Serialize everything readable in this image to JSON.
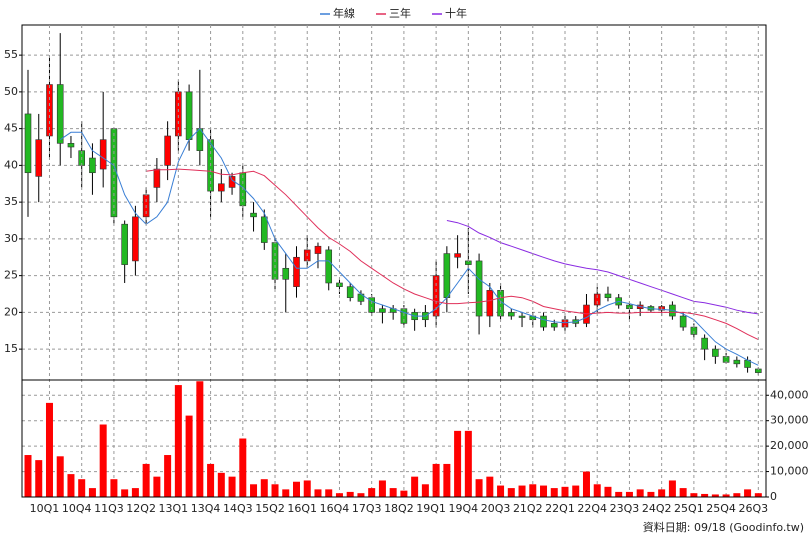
{
  "chart_data": [
    {
      "type": "candlestick",
      "legend": "top",
      "up_color": "#ff0000",
      "down_color": "#22b822",
      "ylim": [
        10.8,
        59.1
      ],
      "yticks": [
        15,
        20,
        25,
        30,
        35,
        40,
        45,
        50,
        55
      ],
      "grid": true,
      "open": [
        47,
        38.5,
        44,
        51,
        43,
        42,
        41,
        39.5,
        45,
        32,
        27,
        33,
        37,
        40,
        44,
        50,
        45,
        43.5,
        36.5,
        37,
        39,
        33.5,
        33,
        29.5,
        26,
        23.5,
        27,
        28,
        28.5,
        24,
        23.5,
        22.5,
        22,
        20.5,
        20.5,
        20.5,
        20,
        20,
        19.5,
        28,
        27.5,
        27,
        27,
        19.5,
        23,
        20,
        19.5,
        19.5,
        19.5,
        18.5,
        18,
        19,
        18.5,
        21,
        22.5,
        22,
        21,
        20.5,
        20.8,
        20.3,
        21,
        19.5,
        18,
        16.5,
        15,
        14,
        13.5,
        13.5,
        12.3
      ],
      "high": [
        53,
        47,
        55,
        58,
        44,
        46,
        43,
        50,
        45,
        32.5,
        34.5,
        37,
        41,
        46,
        51.5,
        51,
        53,
        45,
        39.5,
        39,
        40,
        35,
        34,
        30.5,
        28,
        29,
        30.5,
        29.5,
        29,
        24.5,
        24,
        23,
        22.5,
        21,
        21,
        21,
        20.5,
        21,
        27,
        29,
        30.5,
        31.5,
        28,
        24,
        24,
        20.5,
        20,
        20,
        20,
        19,
        19.5,
        19.5,
        22.5,
        23.5,
        23.5,
        22.5,
        21.5,
        21.5,
        21,
        21,
        21.5,
        20,
        18.5,
        17,
        15.5,
        14.5,
        14,
        14,
        12.5
      ],
      "low": [
        33,
        35,
        41,
        40,
        41,
        37,
        36,
        37,
        32,
        24,
        25,
        32,
        35,
        38,
        42,
        42,
        40,
        33,
        35,
        36,
        33,
        31,
        28.5,
        23,
        20,
        22,
        26,
        26,
        23,
        22.5,
        21.5,
        21,
        19.5,
        18.5,
        19,
        18,
        17.5,
        18,
        18,
        20,
        26,
        22.5,
        17,
        18,
        19,
        19,
        18,
        18,
        17.5,
        17.5,
        17.5,
        18,
        18,
        20,
        21.5,
        20.5,
        19,
        19.5,
        20,
        19.5,
        19,
        17.5,
        16.5,
        13.5,
        13,
        13,
        12.5,
        11.8,
        11.5
      ],
      "close": [
        39,
        43.5,
        51,
        43,
        42.5,
        40,
        39,
        43.5,
        33,
        26.5,
        33,
        36,
        39.5,
        44,
        50,
        43.5,
        42,
        36.5,
        37.5,
        38.5,
        34.5,
        33,
        29.5,
        24.5,
        24.5,
        27.5,
        28.5,
        29,
        24,
        23.5,
        22,
        21.5,
        20,
        20,
        20,
        18.5,
        19,
        19,
        25,
        22,
        28,
        26.5,
        19.5,
        23,
        19.5,
        19.5,
        19.3,
        19,
        18,
        18,
        19,
        18.5,
        21,
        22.5,
        22,
        21,
        20.5,
        21,
        20.3,
        20.8,
        19.5,
        18,
        17,
        15,
        14,
        13.2,
        13,
        12.5,
        11.8
      ],
      "series": [
        {
          "name": "年線",
          "color": "#3a7fd5",
          "values": [
            null,
            null,
            null,
            43.5,
            44.5,
            44.5,
            42,
            41,
            40,
            36,
            33.5,
            32,
            33,
            35,
            40.5,
            43.5,
            45,
            43,
            41,
            38,
            37,
            35.5,
            33.5,
            30,
            28,
            26,
            26,
            27,
            27,
            25.5,
            24,
            22.5,
            21.5,
            21,
            20.5,
            20,
            19.5,
            19.5,
            20.5,
            22,
            24,
            26,
            24.5,
            23.5,
            21.5,
            20.5,
            20,
            19.5,
            19,
            18.7,
            18.6,
            18.7,
            19.3,
            20.3,
            21,
            21.5,
            21.2,
            20.8,
            20.5,
            20.4,
            20.3,
            19.8,
            19,
            17.5,
            16,
            15,
            14.3,
            13.5,
            12.8
          ]
        },
        {
          "name": "三年",
          "color": "#e0305a",
          "values": [
            null,
            null,
            null,
            null,
            null,
            null,
            null,
            null,
            null,
            null,
            null,
            39.2,
            39.4,
            39.4,
            39.5,
            39.4,
            39.3,
            39.2,
            38.8,
            38.7,
            39,
            39.2,
            38.6,
            37.3,
            36,
            34.5,
            33,
            31.5,
            30.2,
            29.3,
            28.3,
            27,
            26,
            25,
            24,
            23.2,
            22.5,
            22,
            21.5,
            21.2,
            21.2,
            21.3,
            21.4,
            21.6,
            22,
            22.2,
            22,
            21.5,
            20.8,
            20.5,
            20.2,
            20,
            19.8,
            19.9,
            20,
            19.9,
            19.9,
            20,
            20,
            20,
            20,
            20,
            19.8,
            19.5,
            19,
            18.5,
            17.8,
            17,
            16.3
          ]
        },
        {
          "name": "十年",
          "color": "#8a2be2",
          "values": [
            null,
            null,
            null,
            null,
            null,
            null,
            null,
            null,
            null,
            null,
            null,
            null,
            null,
            null,
            null,
            null,
            null,
            null,
            null,
            null,
            null,
            null,
            null,
            null,
            null,
            null,
            null,
            null,
            null,
            null,
            null,
            null,
            null,
            null,
            null,
            null,
            null,
            null,
            null,
            32.5,
            32.2,
            31.7,
            30.8,
            30.2,
            29.5,
            29,
            28.5,
            28,
            27.5,
            27,
            26.6,
            26.3,
            26,
            25.8,
            25.5,
            25,
            24.5,
            24,
            23.5,
            23,
            22.5,
            22,
            21.5,
            21.3,
            21,
            20.7,
            20.3,
            20,
            19.8
          ]
        }
      ]
    },
    {
      "type": "bar",
      "color": "#ff0000",
      "annotation": "資料日期: 09/18 (Goodinfo.tw)",
      "categories": [
        null,
        null,
        "10Q1",
        null,
        null,
        "10Q4",
        null,
        null,
        "11Q3",
        null,
        null,
        "12Q2",
        null,
        null,
        "13Q1",
        null,
        null,
        "13Q4",
        null,
        null,
        "14Q3",
        null,
        null,
        "15Q2",
        null,
        null,
        "16Q1",
        null,
        null,
        "16Q4",
        null,
        null,
        "17Q3",
        null,
        null,
        "18Q2",
        null,
        null,
        "19Q1",
        null,
        null,
        "19Q4",
        null,
        null,
        "20Q3",
        null,
        null,
        "21Q2",
        null,
        null,
        "22Q1",
        null,
        null,
        "22Q4",
        null,
        null,
        "23Q3",
        null,
        null,
        "24Q2",
        null,
        null,
        "25Q1",
        null,
        null,
        "25Q4",
        null,
        null,
        "26Q3"
      ],
      "values": [
        16500,
        14500,
        37000,
        16000,
        9000,
        7000,
        3500,
        28500,
        7000,
        3000,
        3500,
        13000,
        8000,
        16500,
        44000,
        32000,
        45500,
        13000,
        9500,
        8000,
        23000,
        5000,
        7000,
        5000,
        3000,
        6000,
        6500,
        3000,
        3000,
        1500,
        2000,
        1500,
        3500,
        6500,
        3500,
        2500,
        8000,
        5000,
        13000,
        13000,
        26000,
        26000,
        7000,
        8000,
        4500,
        3500,
        4500,
        5000,
        4500,
        3500,
        4000,
        4500,
        10000,
        5000,
        4000,
        2000,
        2000,
        3000,
        2000,
        3000,
        6500,
        3500,
        1500,
        1200,
        1000,
        1000,
        1500,
        3000,
        1500
      ],
      "ylim": [
        0,
        46000
      ],
      "yticks": [
        0,
        {
          "value": 10000,
          "label": "10,000"
        },
        {
          "value": 20000,
          "label": "20,000"
        },
        {
          "value": 30000,
          "label": "30,000"
        },
        {
          "value": 40000,
          "label": "40,000"
        }
      ],
      "grid": true
    }
  ]
}
